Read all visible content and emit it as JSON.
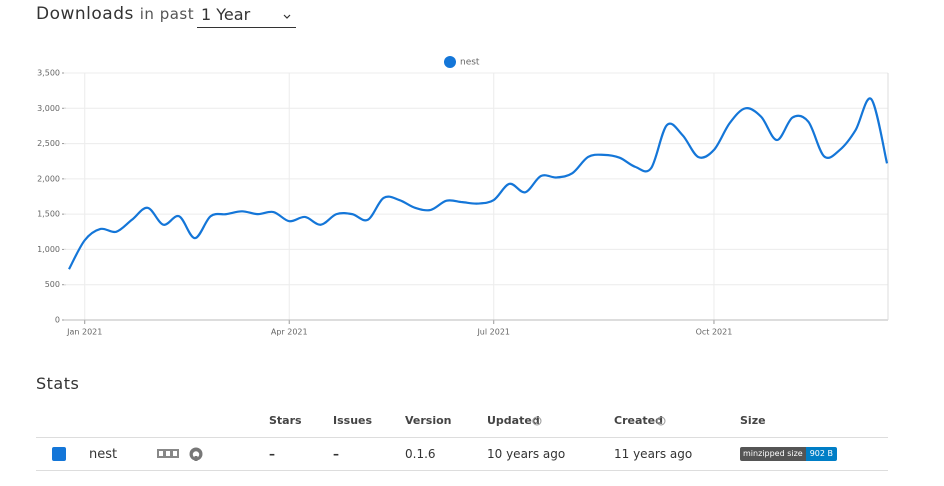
{
  "header": {
    "title": "Downloads",
    "in_past": "in past",
    "period": "1 Year"
  },
  "chart_data": {
    "type": "line",
    "categories": [
      null,
      "Jan 2021",
      null,
      null,
      null,
      null,
      null,
      null,
      null,
      null,
      null,
      null,
      null,
      null,
      "Apr 2021",
      null,
      null,
      null,
      null,
      null,
      null,
      null,
      null,
      null,
      null,
      null,
      null,
      "Jul 2021",
      null,
      null,
      null,
      null,
      null,
      null,
      null,
      null,
      null,
      null,
      null,
      null,
      null,
      "Oct 2021",
      null,
      null,
      null,
      null,
      null,
      null,
      null,
      null,
      null,
      null,
      null
    ],
    "series": [
      {
        "name": "nest",
        "color": "#1476d8",
        "values": [
          720,
          1130,
          1290,
          1250,
          1420,
          1590,
          1350,
          1470,
          1160,
          1470,
          1500,
          1540,
          1500,
          1530,
          1400,
          1460,
          1350,
          1500,
          1500,
          1420,
          1730,
          1700,
          1590,
          1560,
          1690,
          1670,
          1650,
          1700,
          1930,
          1810,
          2040,
          2020,
          2080,
          2310,
          2340,
          2300,
          2170,
          2150,
          2760,
          2620,
          2310,
          2410,
          2790,
          3000,
          2880,
          2550,
          2870,
          2810,
          2320,
          2410,
          2690,
          3130,
          2220
        ]
      }
    ],
    "ylim": [
      0,
      3500
    ],
    "yticks": [
      0,
      500,
      {
        "value": 1000,
        "label": "1,000"
      },
      {
        "value": 1500,
        "label": "1,500"
      },
      {
        "value": 2000,
        "label": "2,000"
      },
      {
        "value": 2500,
        "label": "2,500"
      },
      {
        "value": 3000,
        "label": "3,000"
      },
      {
        "value": 3500,
        "label": "3,500"
      }
    ],
    "grid": true,
    "legend": "top"
  },
  "stats": {
    "title": "Stats",
    "columns": [
      "Stars",
      "Issues",
      "Version",
      "Updated",
      "Created",
      "Size"
    ],
    "rows": [
      {
        "name": "nest",
        "stars": "–",
        "issues": "–",
        "version": "0.1.6",
        "updated": "10 years ago",
        "created": "11 years ago",
        "size_label": "minzipped size",
        "size_value": "902 B"
      }
    ]
  }
}
